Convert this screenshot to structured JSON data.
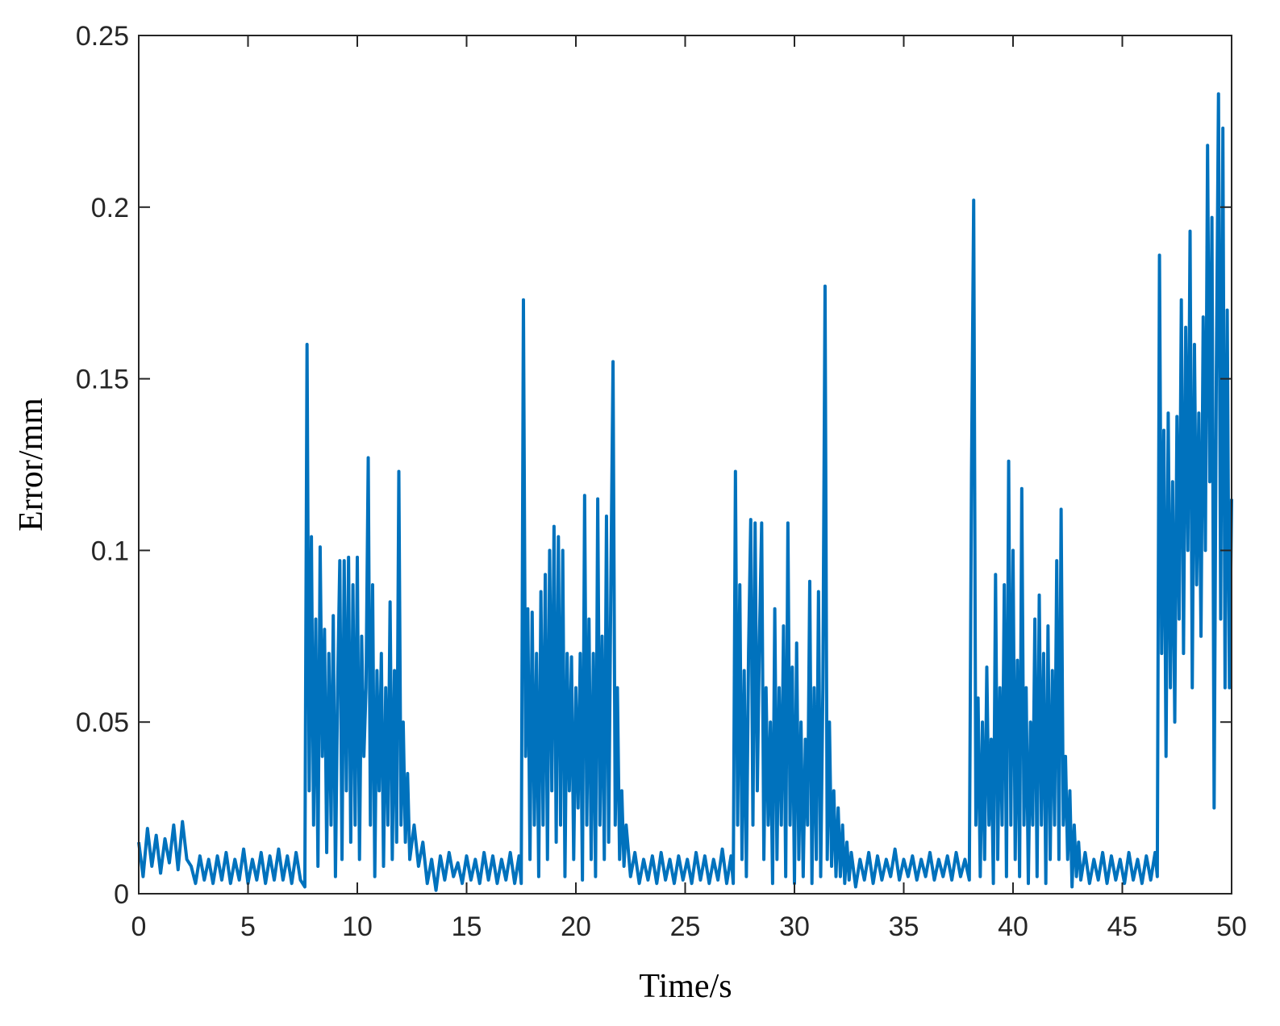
{
  "chart_data": {
    "type": "line",
    "xlabel": "Time/s",
    "ylabel": "Error/mm",
    "color": "#0072bd",
    "xlim": [
      0,
      50
    ],
    "ylim": [
      0,
      0.25
    ],
    "xticks": [
      0,
      5,
      10,
      15,
      20,
      25,
      30,
      35,
      40,
      45,
      50
    ],
    "yticks": [
      0,
      0.05,
      0.1,
      0.15,
      0.2,
      0.25
    ],
    "x": [
      0,
      0.2,
      0.4,
      0.6,
      0.8,
      1,
      1.2,
      1.4,
      1.6,
      1.8,
      2,
      2.2,
      2.4,
      2.6,
      2.8,
      3,
      3.2,
      3.4,
      3.6,
      3.8,
      4,
      4.2,
      4.4,
      4.6,
      4.8,
      5,
      5.2,
      5.4,
      5.6,
      5.8,
      6,
      6.2,
      6.4,
      6.6,
      6.8,
      7,
      7.2,
      7.4,
      7.6,
      7.7,
      7.8,
      7.9,
      8,
      8.1,
      8.2,
      8.3,
      8.4,
      8.5,
      8.6,
      8.7,
      8.8,
      8.9,
      9,
      9.1,
      9.2,
      9.3,
      9.4,
      9.5,
      9.6,
      9.7,
      9.8,
      9.9,
      10,
      10.1,
      10.2,
      10.3,
      10.4,
      10.5,
      10.6,
      10.7,
      10.8,
      10.9,
      11,
      11.1,
      11.2,
      11.3,
      11.4,
      11.5,
      11.6,
      11.7,
      11.8,
      11.9,
      12,
      12.1,
      12.2,
      12.3,
      12.4,
      12.6,
      12.8,
      13,
      13.2,
      13.4,
      13.6,
      13.8,
      14,
      14.2,
      14.4,
      14.6,
      14.8,
      15,
      15.2,
      15.4,
      15.6,
      15.8,
      16,
      16.2,
      16.4,
      16.6,
      16.8,
      17,
      17.2,
      17.4,
      17.5,
      17.6,
      17.7,
      17.8,
      17.9,
      18,
      18.1,
      18.2,
      18.3,
      18.4,
      18.5,
      18.6,
      18.7,
      18.8,
      18.9,
      19,
      19.1,
      19.2,
      19.3,
      19.4,
      19.5,
      19.6,
      19.7,
      19.8,
      19.9,
      20,
      20.1,
      20.2,
      20.3,
      20.4,
      20.5,
      20.6,
      20.7,
      20.8,
      20.9,
      21,
      21.1,
      21.2,
      21.3,
      21.4,
      21.5,
      21.6,
      21.7,
      21.8,
      21.9,
      22,
      22.1,
      22.2,
      22.3,
      22.5,
      22.7,
      22.9,
      23.1,
      23.3,
      23.5,
      23.7,
      23.9,
      24.1,
      24.3,
      24.5,
      24.7,
      24.9,
      25.1,
      25.3,
      25.5,
      25.7,
      25.9,
      26.1,
      26.3,
      26.5,
      26.7,
      26.9,
      27.1,
      27.2,
      27.3,
      27.4,
      27.5,
      27.6,
      27.7,
      27.8,
      27.9,
      28,
      28.1,
      28.2,
      28.3,
      28.4,
      28.5,
      28.6,
      28.7,
      28.8,
      28.9,
      29,
      29.1,
      29.2,
      29.3,
      29.4,
      29.5,
      29.6,
      29.7,
      29.8,
      29.9,
      30,
      30.1,
      30.2,
      30.3,
      30.4,
      30.5,
      30.6,
      30.7,
      30.8,
      30.9,
      31,
      31.1,
      31.2,
      31.3,
      31.4,
      31.5,
      31.6,
      31.7,
      31.8,
      31.9,
      32,
      32.1,
      32.2,
      32.3,
      32.4,
      32.5,
      32.6,
      32.8,
      33,
      33.2,
      33.4,
      33.6,
      33.8,
      34,
      34.2,
      34.4,
      34.6,
      34.8,
      35,
      35.2,
      35.4,
      35.6,
      35.8,
      36,
      36.2,
      36.4,
      36.6,
      36.8,
      37,
      37.2,
      37.4,
      37.6,
      37.8,
      38,
      38.1,
      38.2,
      38.3,
      38.4,
      38.5,
      38.6,
      38.7,
      38.8,
      38.9,
      39,
      39.1,
      39.2,
      39.3,
      39.4,
      39.5,
      39.6,
      39.7,
      39.8,
      39.9,
      40,
      40.1,
      40.2,
      40.3,
      40.4,
      40.5,
      40.6,
      40.7,
      40.8,
      40.9,
      41,
      41.1,
      41.2,
      41.3,
      41.4,
      41.5,
      41.6,
      41.7,
      41.8,
      41.9,
      42,
      42.1,
      42.2,
      42.3,
      42.4,
      42.5,
      42.6,
      42.7,
      42.8,
      42.9,
      43,
      43.1,
      43.3,
      43.5,
      43.7,
      43.9,
      44.1,
      44.3,
      44.5,
      44.7,
      44.9,
      45.1,
      45.3,
      45.5,
      45.7,
      45.9,
      46.1,
      46.3,
      46.5,
      46.6,
      46.7,
      46.8,
      46.9,
      47,
      47.1,
      47.2,
      47.3,
      47.4,
      47.5,
      47.6,
      47.7,
      47.8,
      47.9,
      48,
      48.1,
      48.2,
      48.3,
      48.4,
      48.5,
      48.6,
      48.7,
      48.8,
      48.9,
      49,
      49.1,
      49.2,
      49.3,
      49.4,
      49.5,
      49.6,
      49.7,
      49.8,
      49.9,
      50
    ],
    "values": [
      0.015,
      0.005,
      0.019,
      0.008,
      0.017,
      0.006,
      0.016,
      0.009,
      0.02,
      0.007,
      0.021,
      0.01,
      0.008,
      0.003,
      0.011,
      0.004,
      0.01,
      0.003,
      0.011,
      0.004,
      0.012,
      0.003,
      0.01,
      0.004,
      0.013,
      0.003,
      0.01,
      0.004,
      0.012,
      0.003,
      0.011,
      0.004,
      0.013,
      0.004,
      0.011,
      0.003,
      0.012,
      0.004,
      0.002,
      0.16,
      0.03,
      0.104,
      0.02,
      0.08,
      0.008,
      0.101,
      0.04,
      0.077,
      0.012,
      0.07,
      0.02,
      0.081,
      0.005,
      0.06,
      0.097,
      0.01,
      0.097,
      0.03,
      0.098,
      0.015,
      0.09,
      0.02,
      0.098,
      0.01,
      0.075,
      0.04,
      0.06,
      0.127,
      0.02,
      0.09,
      0.005,
      0.065,
      0.03,
      0.07,
      0.008,
      0.06,
      0.02,
      0.085,
      0.01,
      0.065,
      0.015,
      0.123,
      0.02,
      0.05,
      0.015,
      0.035,
      0.01,
      0.02,
      0.008,
      0.015,
      0.003,
      0.01,
      0.001,
      0.011,
      0.004,
      0.012,
      0.005,
      0.009,
      0.003,
      0.011,
      0.004,
      0.01,
      0.003,
      0.012,
      0.004,
      0.011,
      0.003,
      0.01,
      0.004,
      0.012,
      0.003,
      0.011,
      0.003,
      0.173,
      0.04,
      0.083,
      0.01,
      0.082,
      0.02,
      0.07,
      0.005,
      0.088,
      0.02,
      0.093,
      0.01,
      0.1,
      0.03,
      0.107,
      0.015,
      0.104,
      0.02,
      0.1,
      0.005,
      0.07,
      0.03,
      0.069,
      0.01,
      0.06,
      0.025,
      0.07,
      0.004,
      0.116,
      0.02,
      0.08,
      0.01,
      0.07,
      0.005,
      0.115,
      0.02,
      0.075,
      0.01,
      0.11,
      0.015,
      0.09,
      0.155,
      0.02,
      0.06,
      0.01,
      0.03,
      0.008,
      0.02,
      0.005,
      0.012,
      0.003,
      0.01,
      0.004,
      0.011,
      0.003,
      0.012,
      0.004,
      0.01,
      0.003,
      0.011,
      0.004,
      0.01,
      0.003,
      0.012,
      0.004,
      0.011,
      0.003,
      0.01,
      0.004,
      0.013,
      0.003,
      0.011,
      0.003,
      0.123,
      0.02,
      0.09,
      0.01,
      0.065,
      0.005,
      0.07,
      0.109,
      0.02,
      0.108,
      0.03,
      0.075,
      0.108,
      0.01,
      0.06,
      0.02,
      0.05,
      0.003,
      0.083,
      0.01,
      0.06,
      0.02,
      0.078,
      0.005,
      0.108,
      0.02,
      0.066,
      0.003,
      0.073,
      0.01,
      0.05,
      0.005,
      0.045,
      0.02,
      0.091,
      0.003,
      0.06,
      0.01,
      0.088,
      0.005,
      0.06,
      0.177,
      0.01,
      0.05,
      0.008,
      0.03,
      0.005,
      0.025,
      0.005,
      0.02,
      0.003,
      0.015,
      0.004,
      0.012,
      0.002,
      0.01,
      0.004,
      0.012,
      0.003,
      0.011,
      0.004,
      0.01,
      0.005,
      0.013,
      0.004,
      0.01,
      0.005,
      0.011,
      0.004,
      0.01,
      0.005,
      0.012,
      0.004,
      0.01,
      0.005,
      0.011,
      0.004,
      0.012,
      0.005,
      0.01,
      0.004,
      0.122,
      0.202,
      0.02,
      0.057,
      0.005,
      0.05,
      0.01,
      0.066,
      0.02,
      0.045,
      0.003,
      0.093,
      0.01,
      0.06,
      0.02,
      0.09,
      0.005,
      0.126,
      0.02,
      0.1,
      0.01,
      0.068,
      0.005,
      0.118,
      0.02,
      0.06,
      0.003,
      0.05,
      0.02,
      0.08,
      0.005,
      0.087,
      0.02,
      0.07,
      0.003,
      0.078,
      0.01,
      0.065,
      0.02,
      0.097,
      0.01,
      0.112,
      0.02,
      0.04,
      0.01,
      0.03,
      0.002,
      0.02,
      0.005,
      0.015,
      0.004,
      0.012,
      0.003,
      0.01,
      0.004,
      0.012,
      0.003,
      0.011,
      0.004,
      0.01,
      0.003,
      0.012,
      0.004,
      0.01,
      0.003,
      0.011,
      0.004,
      0.012,
      0.005,
      0.186,
      0.07,
      0.135,
      0.04,
      0.14,
      0.06,
      0.12,
      0.05,
      0.139,
      0.08,
      0.173,
      0.07,
      0.165,
      0.1,
      0.193,
      0.06,
      0.16,
      0.09,
      0.14,
      0.075,
      0.168,
      0.1,
      0.218,
      0.12,
      0.197,
      0.025,
      0.15,
      0.233,
      0.08,
      0.223,
      0.06,
      0.17,
      0.06,
      0.115
    ]
  }
}
